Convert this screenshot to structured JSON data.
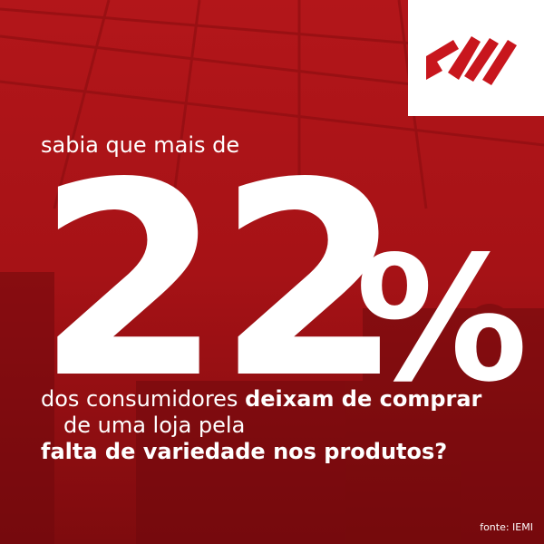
{
  "intro": "sabia que mais de",
  "number": "22",
  "percent_sign": "%",
  "line1": {
    "regular": "dos consumidores",
    "bold": "deixam de comprar"
  },
  "line2": "de uma loja pela",
  "line3": "falta de variedade nos produtos?",
  "source": "fonte: IEMI"
}
